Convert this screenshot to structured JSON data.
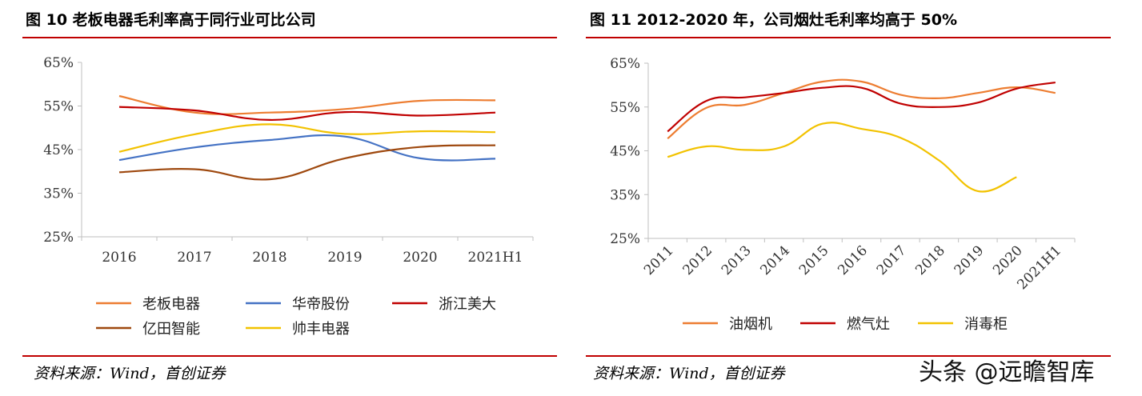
{
  "left_panel": {
    "title": "图 10 老板电器毛利率高于同行业可比公司",
    "source": "资料来源：Wind，首创证券"
  },
  "right_panel": {
    "title": "图 11 2012-2020 年，公司烟灶毛利率均高于 50%",
    "source": "资料来源：Wind，首创证券"
  },
  "watermark": "头条 @远瞻智库",
  "colors": {
    "rule": "#c00000"
  },
  "chart_data": [
    {
      "type": "line",
      "title": "图 10 老板电器毛利率高于同行业可比公司",
      "categories": [
        "2016",
        "2017",
        "2018",
        "2019",
        "2020",
        "2021H1"
      ],
      "y_ticks": [
        "25%",
        "35%",
        "45%",
        "55%",
        "65%"
      ],
      "ylim": [
        25,
        65
      ],
      "xlabel": "",
      "ylabel": "",
      "legend_position": "bottom",
      "series": [
        {
          "name": "老板电器",
          "color": "#ED7D31",
          "values": [
            57.3,
            53.5,
            53.5,
            54.3,
            56.2,
            56.3
          ]
        },
        {
          "name": "华帝股份",
          "color": "#4472C4",
          "values": [
            42.6,
            45.5,
            47.2,
            48.0,
            43.0,
            42.9
          ]
        },
        {
          "name": "浙江美大",
          "color": "#C00000",
          "values": [
            54.8,
            54.0,
            51.8,
            53.6,
            52.8,
            53.5
          ]
        },
        {
          "name": "亿田智能",
          "color": "#9E480E",
          "values": [
            39.8,
            40.5,
            38.2,
            43.0,
            45.6,
            46.0
          ]
        },
        {
          "name": "帅丰电器",
          "color": "#F2C200",
          "values": [
            44.5,
            48.5,
            50.8,
            48.6,
            49.2,
            49.0
          ]
        }
      ]
    },
    {
      "type": "line",
      "title": "图 11 2012-2020 年，公司烟灶毛利率均高于 50%",
      "categories": [
        "2011",
        "2012",
        "2013",
        "2014",
        "2015",
        "2016",
        "2017",
        "2018",
        "2019",
        "2020",
        "2021H1"
      ],
      "y_ticks": [
        "25%",
        "35%",
        "45%",
        "55%",
        "65%"
      ],
      "ylim": [
        25,
        65
      ],
      "xlabel": "",
      "ylabel": "",
      "legend_position": "bottom",
      "series": [
        {
          "name": "油烟机",
          "color": "#ED7D31",
          "values": [
            47.8,
            54.8,
            55.5,
            58.2,
            60.8,
            60.8,
            57.8,
            57.0,
            58.2,
            59.5,
            58.2
          ]
        },
        {
          "name": "燃气灶",
          "color": "#C00000",
          "values": [
            49.4,
            56.4,
            57.2,
            58.2,
            59.4,
            59.4,
            55.8,
            55.0,
            56.0,
            59.2,
            60.6
          ]
        },
        {
          "name": "消毒柜",
          "color": "#F2C200",
          "values": [
            43.6,
            46.0,
            45.2,
            46.0,
            51.2,
            50.0,
            48.0,
            42.8,
            35.8,
            39.0,
            null
          ]
        }
      ]
    }
  ]
}
